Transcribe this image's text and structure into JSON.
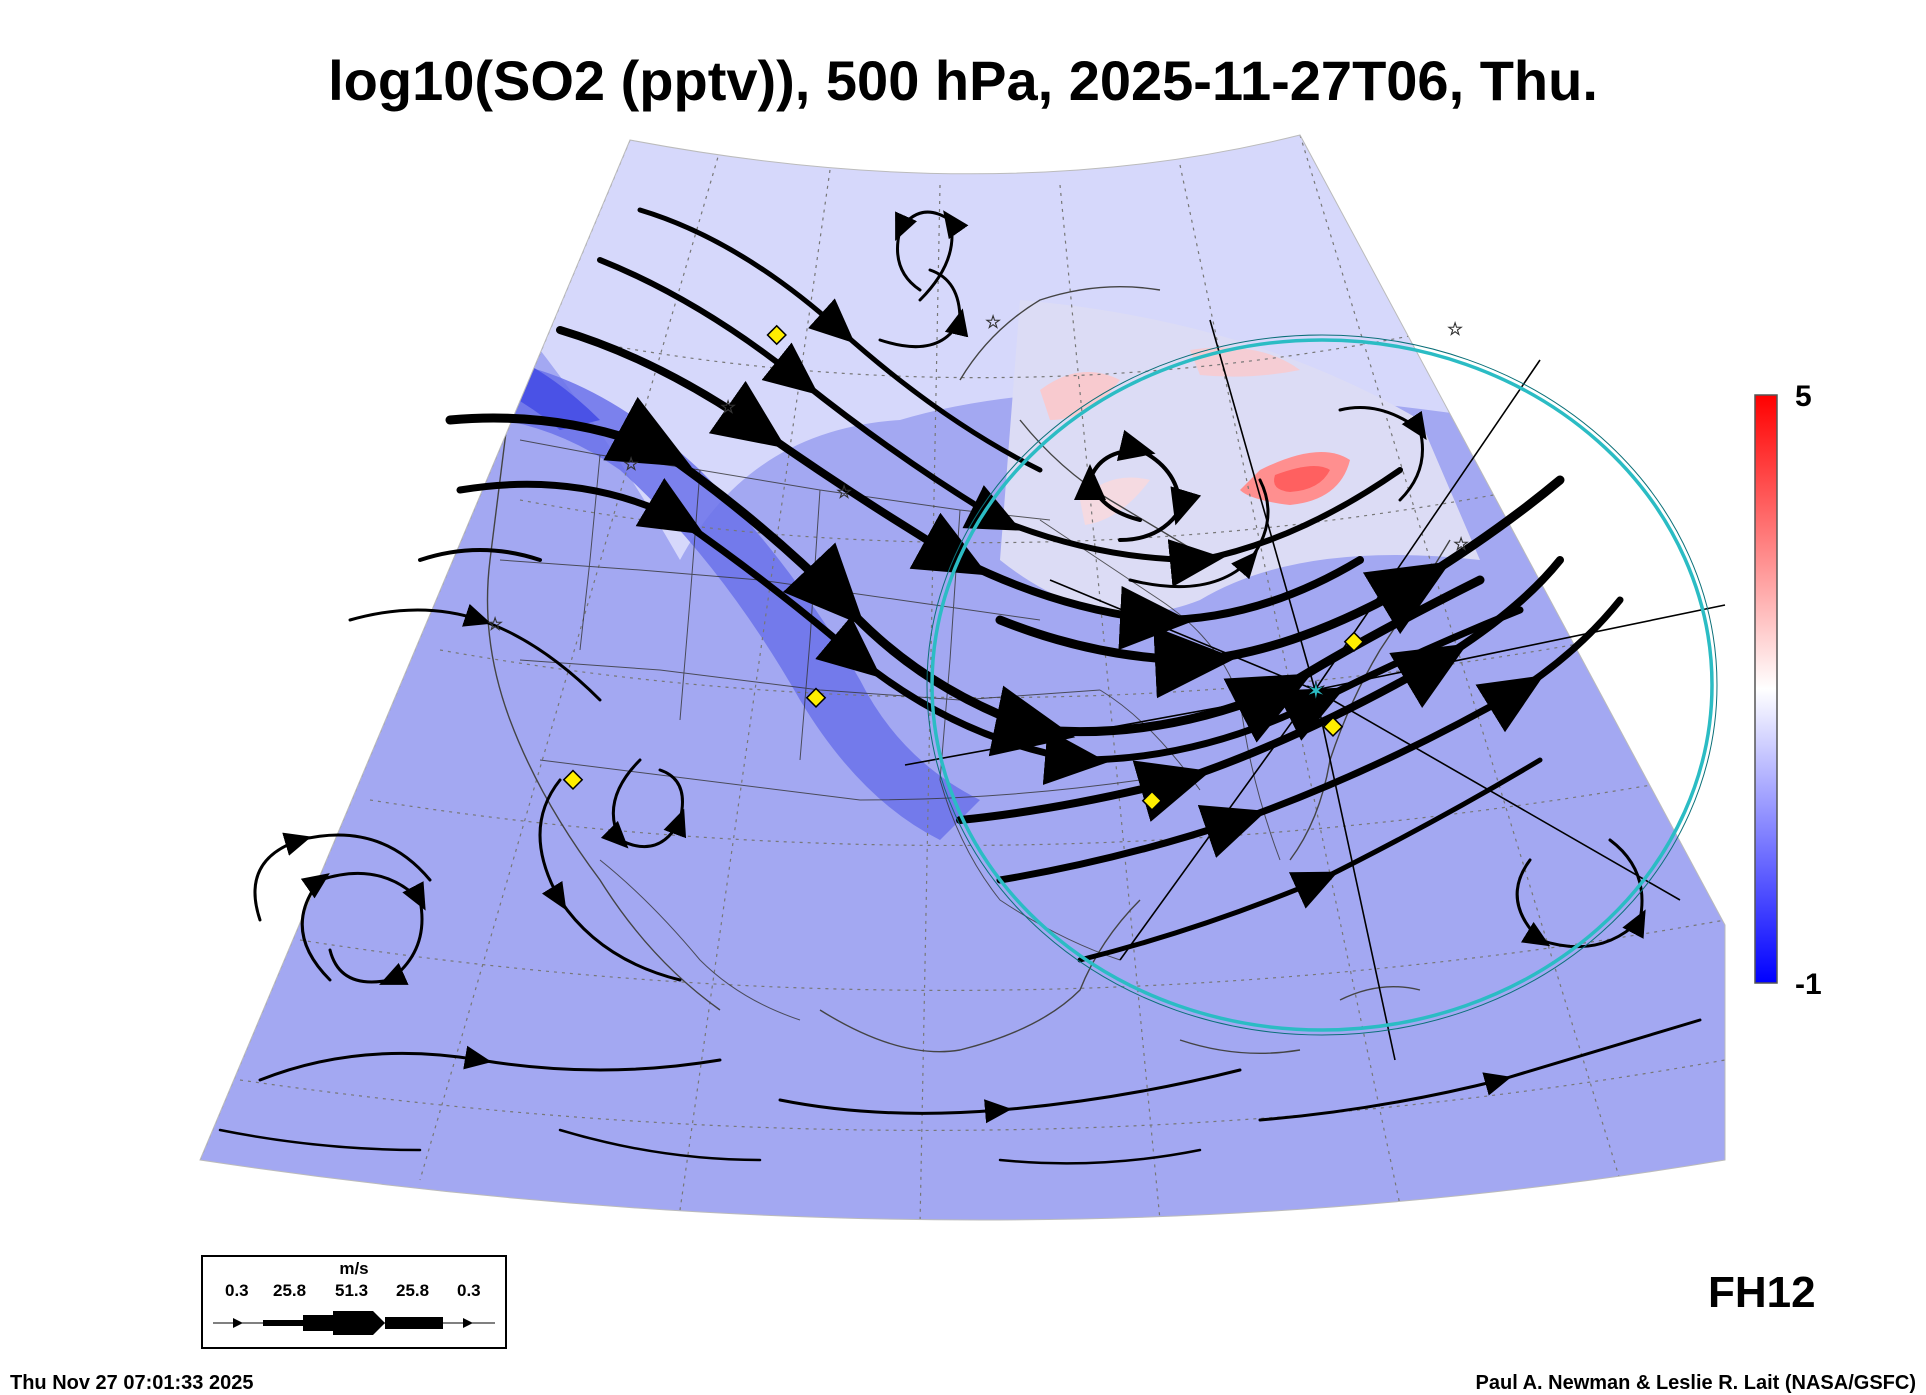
{
  "title": "log10(SO2 (pptv)), 500 hPa, 2025-11-27T06, Thu.",
  "colorbar": {
    "max_label": "5",
    "min_label": "-1",
    "top_color": "#ff0000",
    "mid_color": "#ffffff",
    "bottom_color": "#0000ff"
  },
  "forecast_hour": "FH12",
  "timestamp": "Thu Nov 27 07:01:33 2025",
  "credit": "Paul A. Newman & Leslie R. Lait (NASA/GSFC)",
  "wind_legend": {
    "unit": "m/s",
    "ticks": [
      "0.3",
      "25.8",
      "51.3",
      "25.8",
      "0.3"
    ]
  },
  "colors": {
    "background_field": "#8f97f0",
    "range_ring": "#2bbcc4",
    "markers": "#ffee00"
  }
}
